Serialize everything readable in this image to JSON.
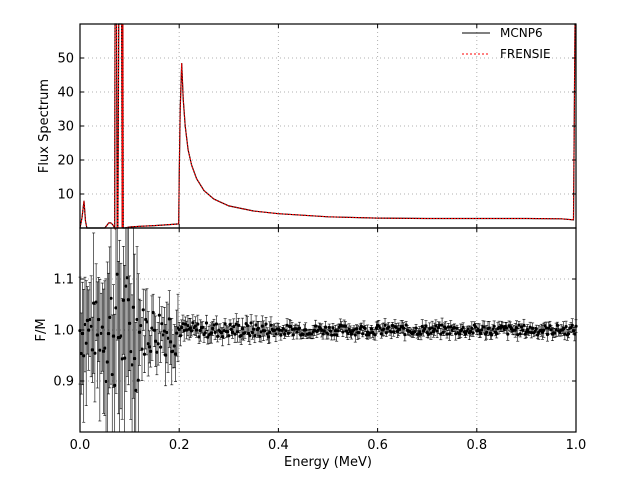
{
  "chart_data": [
    {
      "type": "line",
      "panel": "top",
      "ylabel": "Flux Spectrum",
      "xlim": [
        0.0,
        1.0
      ],
      "ylim": [
        0,
        60
      ],
      "yticks": [
        10,
        20,
        30,
        40,
        50
      ],
      "grid": true,
      "legend_position": "top-right",
      "legend": [
        "MCNP6",
        "FRENSIE"
      ],
      "series": [
        {
          "name": "MCNP6",
          "color": "#000000",
          "style": "solid",
          "x": [
            0.0,
            0.004,
            0.008,
            0.011,
            0.014,
            0.02,
            0.05,
            0.058,
            0.062,
            0.066,
            0.07,
            0.0705,
            0.072,
            0.0735,
            0.075,
            0.0765,
            0.078,
            0.08,
            0.082,
            0.084,
            0.085,
            0.0865,
            0.087,
            0.09,
            0.1,
            0.12,
            0.15,
            0.18,
            0.199,
            0.2,
            0.202,
            0.205,
            0.208,
            0.212,
            0.218,
            0.225,
            0.235,
            0.25,
            0.27,
            0.3,
            0.35,
            0.4,
            0.5,
            0.6,
            0.7,
            0.8,
            0.9,
            0.97,
            0.995,
            0.998,
            1.0
          ],
          "values": [
            0,
            3,
            8,
            2,
            0,
            0,
            0,
            1.5,
            1.5,
            1,
            0,
            60,
            60,
            60,
            0,
            0,
            60,
            60,
            60,
            60,
            0,
            60,
            0,
            0,
            0.3,
            0.5,
            0.7,
            1.0,
            1.2,
            15,
            35,
            48.5,
            38,
            30,
            23,
            18.5,
            14.5,
            11,
            8.5,
            6.5,
            5,
            4.2,
            3.3,
            2.9,
            2.8,
            2.8,
            2.8,
            2.7,
            2.4,
            60,
            60
          ]
        },
        {
          "name": "FRENSIE",
          "color": "#ff0000",
          "style": "dotted",
          "x": [
            0.0,
            0.004,
            0.008,
            0.011,
            0.014,
            0.02,
            0.05,
            0.058,
            0.062,
            0.066,
            0.07,
            0.0705,
            0.072,
            0.0735,
            0.075,
            0.0765,
            0.078,
            0.08,
            0.082,
            0.084,
            0.085,
            0.0865,
            0.087,
            0.09,
            0.1,
            0.12,
            0.15,
            0.18,
            0.199,
            0.2,
            0.202,
            0.205,
            0.208,
            0.212,
            0.218,
            0.225,
            0.235,
            0.25,
            0.27,
            0.3,
            0.35,
            0.4,
            0.5,
            0.6,
            0.7,
            0.8,
            0.9,
            0.97,
            0.995,
            0.998,
            1.0
          ],
          "values": [
            0,
            3,
            8,
            2,
            0,
            0,
            0,
            1.5,
            1.5,
            1,
            0,
            60,
            60,
            60,
            0,
            0,
            60,
            60,
            60,
            60,
            0,
            60,
            0,
            0,
            0.3,
            0.5,
            0.7,
            1.0,
            1.2,
            15,
            35,
            48.5,
            38,
            30,
            23,
            18.5,
            14.5,
            11,
            8.5,
            6.5,
            5,
            4.2,
            3.3,
            2.9,
            2.8,
            2.8,
            2.8,
            2.7,
            2.4,
            60,
            60
          ]
        }
      ]
    },
    {
      "type": "scatter",
      "panel": "bottom",
      "xlabel": "Energy (MeV)",
      "ylabel": "F/M",
      "xlim": [
        0.0,
        1.0
      ],
      "ylim": [
        0.8,
        1.2
      ],
      "xticks": [
        "0.0",
        "0.2",
        "0.4",
        "0.6",
        "0.8",
        "1.0"
      ],
      "yticks": [
        "0.9",
        "1.0",
        "1.1"
      ],
      "grid": true,
      "reference": {
        "x_start": 0.0,
        "x_stop": 1.0,
        "x_step": 0.0025,
        "center": 1.0,
        "note": "ratio points with error bars; scatter amplitude by energy range",
        "bands": [
          {
            "from": 0.0,
            "to": 0.05,
            "noise": 0.06,
            "err": 0.1
          },
          {
            "from": 0.05,
            "to": 0.12,
            "noise": 0.12,
            "err": 0.15
          },
          {
            "from": 0.12,
            "to": 0.2,
            "noise": 0.05,
            "err": 0.05
          },
          {
            "from": 0.2,
            "to": 0.4,
            "noise": 0.015,
            "err": 0.015
          },
          {
            "from": 0.4,
            "to": 1.0,
            "noise": 0.01,
            "err": 0.01
          }
        ]
      }
    }
  ]
}
